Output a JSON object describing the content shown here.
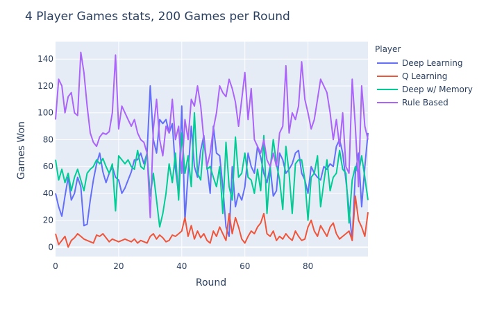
{
  "chart_data": {
    "type": "line",
    "title": "4 Player Games stats, 200 Games per Round",
    "xlabel": "Round",
    "ylabel": "Games Won",
    "xlim": [
      0,
      99
    ],
    "ylim": [
      -7,
      153
    ],
    "xticks": [
      0,
      20,
      40,
      60,
      80
    ],
    "yticks": [
      0,
      20,
      40,
      60,
      80,
      100,
      120,
      140
    ],
    "grid": true,
    "legend_title": "Player",
    "legend_position": "right",
    "series": [
      {
        "name": "Deep Learning",
        "color": "#636efa",
        "values": [
          40,
          30,
          23,
          38,
          52,
          35,
          40,
          52,
          45,
          16,
          17,
          35,
          50,
          62,
          70,
          56,
          48,
          55,
          60,
          52,
          50,
          40,
          44,
          50,
          56,
          65,
          65,
          70,
          62,
          70,
          120,
          80,
          70,
          95,
          92,
          95,
          85,
          92,
          58,
          40,
          105,
          20,
          55,
          90,
          60,
          52,
          72,
          83,
          60,
          40,
          90,
          70,
          68,
          45,
          15,
          8,
          60,
          30,
          40,
          35,
          45,
          70,
          60,
          55,
          75,
          67,
          55,
          48,
          60,
          38,
          42,
          70,
          65,
          55,
          58,
          62,
          70,
          72,
          55,
          50,
          40,
          60,
          55,
          52,
          50,
          60,
          58,
          62,
          60,
          75,
          80,
          70,
          50,
          28,
          5,
          55,
          70,
          30,
          60,
          85
        ]
      },
      {
        "name": "Q Learning",
        "color": "#ef553b",
        "values": [
          10,
          2,
          5,
          8,
          0,
          5,
          7,
          10,
          8,
          6,
          5,
          4,
          3,
          9,
          8,
          10,
          7,
          4,
          6,
          5,
          4,
          5,
          6,
          5,
          4,
          6,
          3,
          5,
          4,
          3,
          8,
          10,
          6,
          9,
          7,
          4,
          5,
          9,
          8,
          10,
          12,
          22,
          8,
          16,
          6,
          12,
          7,
          10,
          5,
          3,
          12,
          8,
          15,
          10,
          5,
          25,
          10,
          22,
          15,
          6,
          3,
          8,
          12,
          10,
          15,
          18,
          25,
          10,
          8,
          12,
          5,
          8,
          6,
          10,
          7,
          5,
          12,
          8,
          5,
          6,
          15,
          20,
          12,
          8,
          16,
          12,
          8,
          15,
          18,
          10,
          6,
          8,
          10,
          12,
          5,
          38,
          20,
          15,
          8,
          26
        ]
      },
      {
        "name": "Deep w/ Memory",
        "color": "#00cc96",
        "values": [
          65,
          50,
          58,
          48,
          55,
          42,
          52,
          58,
          50,
          42,
          55,
          58,
          60,
          65,
          62,
          66,
          60,
          55,
          62,
          27,
          68,
          65,
          62,
          65,
          60,
          58,
          72,
          60,
          58,
          70,
          38,
          55,
          35,
          15,
          25,
          40,
          62,
          48,
          70,
          35,
          85,
          55,
          68,
          45,
          100,
          55,
          50,
          80,
          58,
          60,
          52,
          45,
          60,
          25,
          78,
          45,
          35,
          82,
          52,
          55,
          70,
          52,
          50,
          40,
          58,
          42,
          83,
          25,
          58,
          80,
          62,
          50,
          28,
          75,
          55,
          25,
          62,
          65,
          65,
          50,
          20,
          52,
          55,
          68,
          30,
          48,
          65,
          42,
          52,
          55,
          72,
          58,
          55,
          18,
          50,
          60,
          55,
          68,
          52,
          35
        ]
      },
      {
        "name": "Rule Based",
        "color": "#ab63fa",
        "values": [
          95,
          125,
          120,
          100,
          112,
          115,
          100,
          98,
          145,
          130,
          105,
          85,
          78,
          75,
          82,
          85,
          84,
          86,
          100,
          143,
          88,
          105,
          100,
          95,
          90,
          95,
          85,
          80,
          78,
          70,
          22,
          88,
          110,
          80,
          68,
          90,
          85,
          110,
          80,
          90,
          55,
          95,
          80,
          110,
          105,
          120,
          105,
          80,
          60,
          70,
          88,
          100,
          120,
          115,
          112,
          125,
          118,
          108,
          90,
          110,
          130,
          95,
          118,
          80,
          75,
          70,
          80,
          65,
          60,
          70,
          60,
          85,
          90,
          135,
          85,
          100,
          95,
          105,
          138,
          110,
          100,
          88,
          95,
          110,
          125,
          120,
          115,
          100,
          80,
          95,
          75,
          100,
          60,
          55,
          125,
          90,
          45,
          120,
          90,
          80
        ]
      }
    ]
  }
}
